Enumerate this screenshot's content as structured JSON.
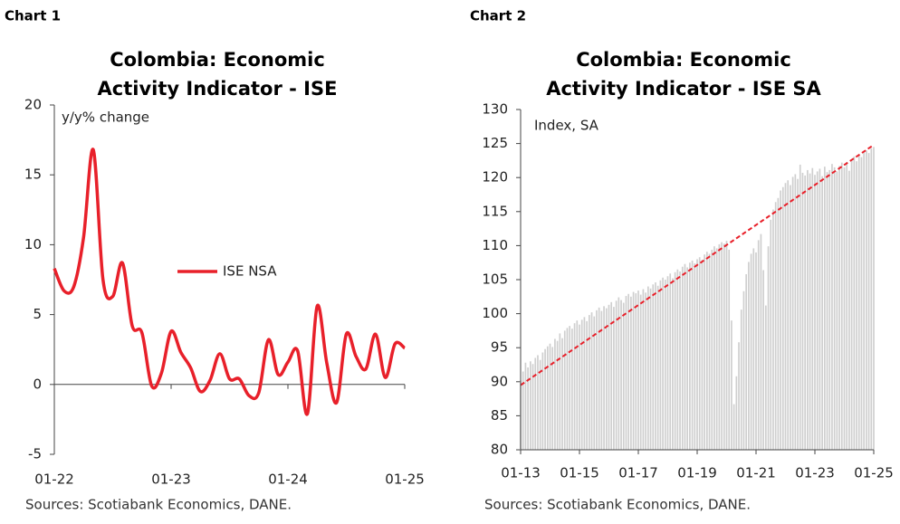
{
  "chart_data": [
    {
      "type": "line",
      "label": "Chart 1",
      "title": [
        "Colombia: Economic",
        "Activity Indicator - ISE"
      ],
      "y_label": "y/y% change",
      "source": "Sources: Scotiabank Economics, DANE.",
      "categories": [
        "01-22",
        null,
        null,
        null,
        null,
        null,
        null,
        null,
        null,
        null,
        null,
        null,
        "01-23",
        null,
        null,
        null,
        null,
        null,
        null,
        null,
        null,
        null,
        null,
        null,
        "01-24",
        null,
        null,
        null,
        null,
        null,
        null,
        null,
        null,
        null,
        null,
        null,
        "01-25"
      ],
      "series": [
        {
          "name": "ISE NSA",
          "color": "#e8202a",
          "values": [
            8.3,
            6.7,
            7.0,
            10.5,
            16.8,
            7.5,
            6.3,
            8.7,
            4.2,
            3.7,
            -0.1,
            0.8,
            3.8,
            2.3,
            1.2,
            -0.5,
            0.3,
            2.2,
            0.4,
            0.4,
            -0.8,
            -0.6,
            3.2,
            0.7,
            1.6,
            2.4,
            -2.1,
            5.6,
            1.5,
            -1.3,
            3.6,
            2.0,
            1.1,
            3.6,
            0.5,
            2.9,
            2.6
          ]
        }
      ],
      "ylim": [
        -5,
        20
      ],
      "yticks": [
        -5,
        0,
        5,
        10,
        15,
        20
      ],
      "legend": "center-left"
    },
    {
      "type": "bar",
      "label": "Chart 2",
      "title": [
        "Colombia: Economic",
        "Activity Indicator - ISE SA"
      ],
      "y_label": "Index, SA",
      "source": "Sources: Scotiabank Economics, DANE.",
      "categories": [
        "01-13",
        null,
        null,
        null,
        null,
        null,
        null,
        null,
        null,
        null,
        null,
        null,
        null,
        null,
        null,
        null,
        null,
        null,
        null,
        null,
        null,
        null,
        null,
        null,
        "01-15",
        null,
        null,
        null,
        null,
        null,
        null,
        null,
        null,
        null,
        null,
        null,
        null,
        null,
        null,
        null,
        null,
        null,
        null,
        null,
        null,
        null,
        null,
        null,
        "01-17",
        null,
        null,
        null,
        null,
        null,
        null,
        null,
        null,
        null,
        null,
        null,
        null,
        null,
        null,
        null,
        null,
        null,
        null,
        null,
        null,
        null,
        null,
        null,
        "01-19",
        null,
        null,
        null,
        null,
        null,
        null,
        null,
        null,
        null,
        null,
        null,
        null,
        null,
        null,
        null,
        null,
        null,
        null,
        null,
        null,
        null,
        null,
        null,
        "01-21",
        null,
        null,
        null,
        null,
        null,
        null,
        null,
        null,
        null,
        null,
        null,
        null,
        null,
        null,
        null,
        null,
        null,
        null,
        null,
        null,
        null,
        null,
        null,
        "01-23",
        null,
        null,
        null,
        null,
        null,
        null,
        null,
        null,
        null,
        null,
        null,
        null,
        null,
        null,
        null,
        null,
        null,
        null,
        null,
        null,
        null,
        null,
        null,
        "01-25"
      ],
      "values": [
        90.2,
        91.5,
        92.8,
        92.1,
        93.0,
        92.6,
        93.5,
        93.9,
        93.2,
        94.3,
        94.8,
        95.2,
        95.6,
        95.1,
        96.3,
        96.0,
        97.1,
        96.4,
        97.5,
        97.9,
        98.2,
        97.8,
        98.6,
        99.0,
        98.4,
        99.1,
        99.5,
        98.9,
        99.8,
        100.2,
        99.6,
        100.5,
        100.9,
        100.4,
        101.1,
        100.8,
        101.3,
        101.7,
        101.0,
        101.9,
        102.4,
        102.0,
        101.6,
        102.6,
        102.9,
        102.5,
        103.2,
        103.0,
        103.4,
        102.8,
        103.6,
        103.1,
        104.0,
        103.7,
        104.3,
        104.6,
        104.1,
        104.9,
        105.3,
        105.0,
        105.5,
        105.9,
        105.2,
        106.1,
        106.5,
        106.2,
        106.9,
        107.3,
        106.8,
        107.5,
        107.8,
        107.4,
        108.0,
        108.3,
        107.9,
        108.7,
        109.1,
        108.8,
        109.4,
        109.9,
        109.6,
        110.2,
        110.5,
        110.3,
        110.7,
        109.4,
        99.0,
        86.7,
        90.8,
        95.8,
        100.6,
        103.3,
        105.8,
        107.6,
        108.8,
        109.6,
        109.0,
        110.8,
        111.7,
        106.4,
        101.2,
        109.9,
        113.8,
        115.3,
        116.4,
        117.0,
        118.1,
        118.6,
        119.2,
        119.6,
        118.9,
        120.1,
        120.5,
        119.8,
        121.9,
        120.7,
        120.3,
        121.1,
        120.6,
        121.4,
        120.4,
        120.9,
        121.3,
        120.2,
        121.6,
        120.8,
        121.1,
        122.0,
        121.5,
        120.9,
        121.7,
        122.2,
        121.5,
        122.3,
        121.0,
        122.6,
        123.1,
        122.4,
        123.4,
        123.0,
        123.7,
        124.0,
        123.6,
        124.3,
        124.5
      ],
      "color": "#cfcfcf",
      "trend": {
        "start": 89.5,
        "end": 124.8,
        "color": "#e8202a",
        "dashed": true
      },
      "ylim": [
        80,
        130
      ],
      "yticks": [
        80,
        85,
        90,
        95,
        100,
        105,
        110,
        115,
        120,
        125,
        130
      ]
    }
  ]
}
